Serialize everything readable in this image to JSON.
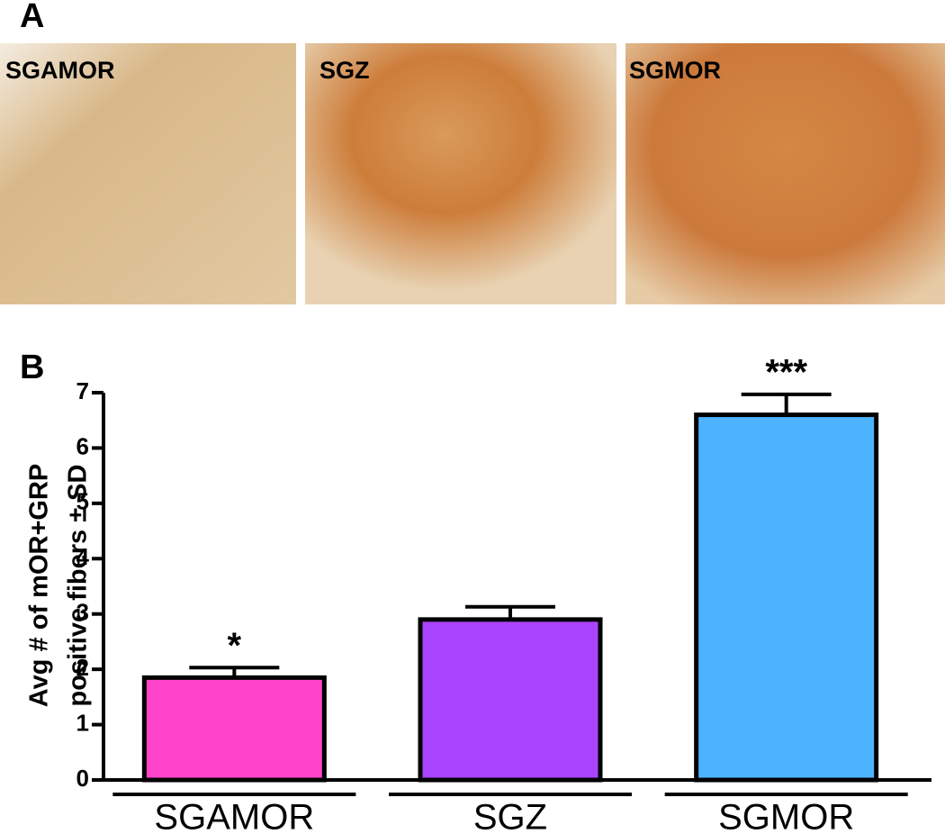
{
  "panels": {
    "a": "A",
    "b": "B"
  },
  "images": [
    "SGAMOR",
    "SGZ",
    "SGMOR"
  ],
  "chart_data": {
    "type": "bar",
    "categories": [
      "SGAMOR",
      "SGZ",
      "SGMOR"
    ],
    "values": [
      1.85,
      2.9,
      6.6
    ],
    "errors": [
      0.18,
      0.23,
      0.37
    ],
    "significance": [
      "*",
      null,
      "***"
    ],
    "colors": [
      "#ff44cc",
      "#aa44ff",
      "#4db3ff"
    ],
    "ylabel": [
      "Avg # of mOR+GRP",
      "positive fibers ± SD"
    ],
    "ylim": [
      0,
      7
    ],
    "yticks": [
      0,
      1,
      2,
      3,
      4,
      5,
      6,
      7
    ]
  }
}
